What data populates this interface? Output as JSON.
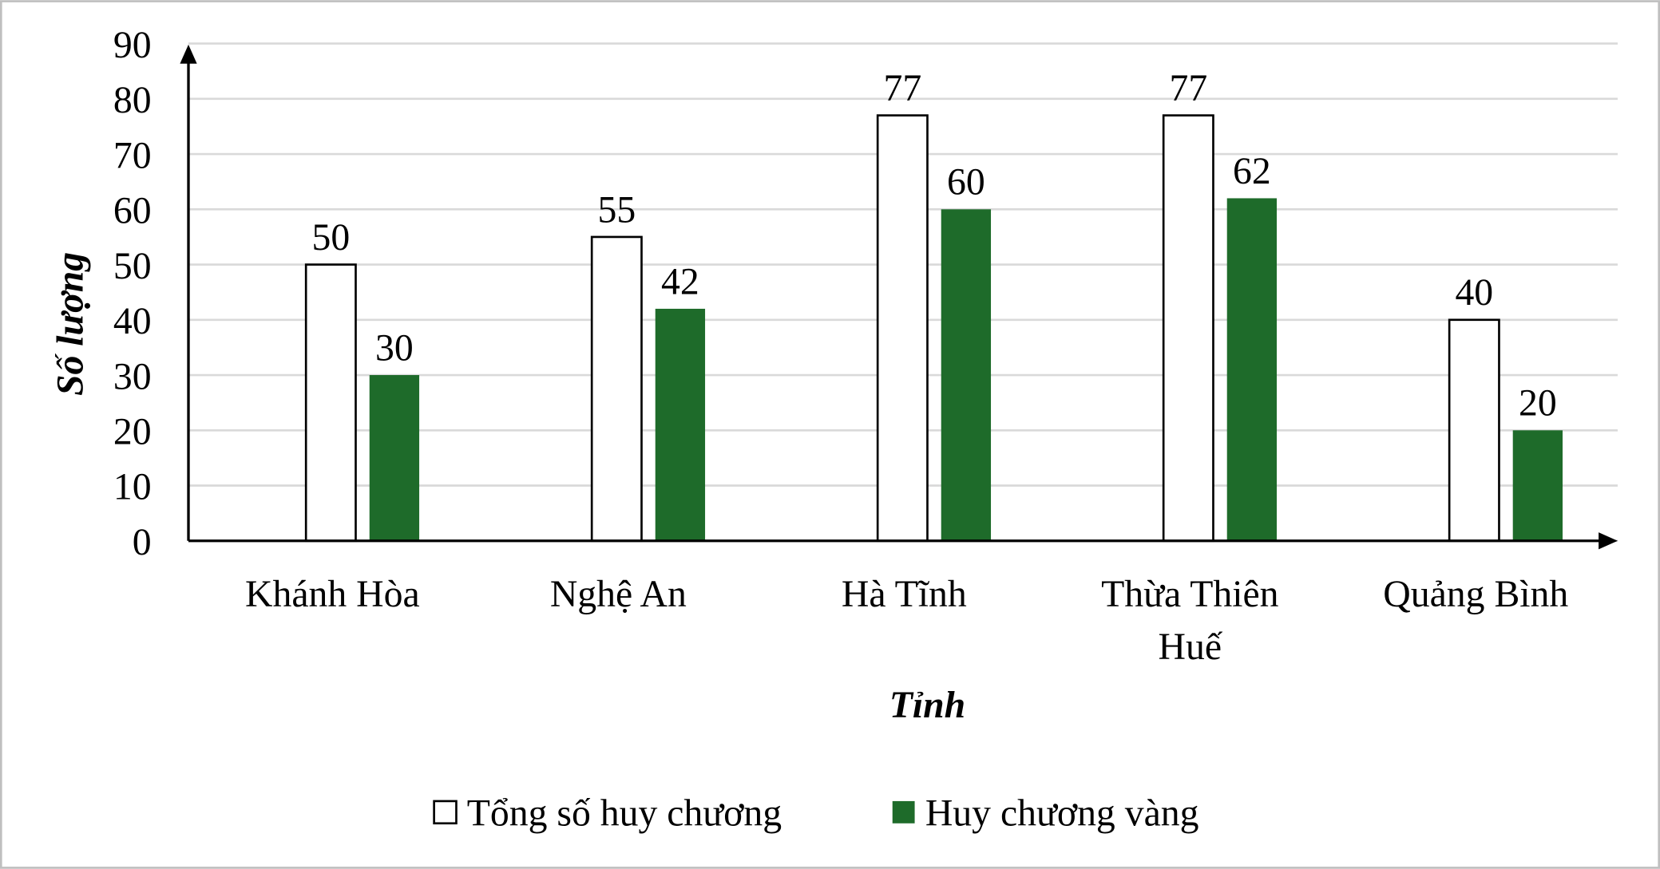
{
  "chart_data": {
    "type": "bar",
    "categories": [
      "Khánh Hòa",
      "Nghệ An",
      "Hà Tĩnh",
      "Thừa Thiên Huế",
      "Quảng Bình"
    ],
    "series": [
      {
        "name": "Tổng số huy chương",
        "color": "#ffffff",
        "values": [
          50,
          55,
          77,
          77,
          40
        ]
      },
      {
        "name": "Huy chương vàng",
        "color": "#1e6b2a",
        "values": [
          30,
          42,
          60,
          62,
          20
        ]
      }
    ],
    "x_label": "Tỉnh",
    "y_label": "Số lượng",
    "ylim": [
      0,
      90
    ],
    "yticks": [
      0,
      10,
      20,
      30,
      40,
      50,
      60,
      70,
      80,
      90
    ],
    "grid": true
  }
}
